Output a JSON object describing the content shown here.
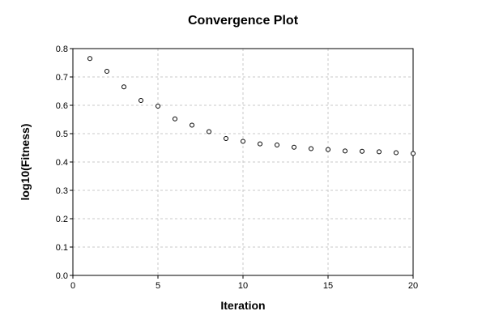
{
  "chart_data": {
    "type": "scatter",
    "title": "Convergence Plot",
    "xlabel": "Iteration",
    "ylabel": "log10(Fitness)",
    "xlim": [
      0,
      20
    ],
    "ylim": [
      0,
      0.8
    ],
    "xticks": [
      "0",
      "5",
      "10",
      "15",
      "20"
    ],
    "xtick_values": [
      0,
      5,
      10,
      15,
      20
    ],
    "yticks": [
      "0.0",
      "0.1",
      "0.2",
      "0.3",
      "0.4",
      "0.5",
      "0.6",
      "0.7",
      "0.8"
    ],
    "ytick_values": [
      0,
      0.1,
      0.2,
      0.3,
      0.4,
      0.5,
      0.6,
      0.7,
      0.8
    ],
    "grid": true,
    "x": [
      1,
      2,
      3,
      4,
      5,
      6,
      7,
      8,
      9,
      10,
      11,
      12,
      13,
      14,
      15,
      16,
      17,
      18,
      19,
      20
    ],
    "y": [
      0.765,
      0.72,
      0.665,
      0.617,
      0.597,
      0.552,
      0.53,
      0.507,
      0.483,
      0.473,
      0.464,
      0.46,
      0.452,
      0.447,
      0.444,
      0.439,
      0.438,
      0.436,
      0.433,
      0.43
    ],
    "marker": "hollow-circle",
    "marker_color": "#000000"
  }
}
